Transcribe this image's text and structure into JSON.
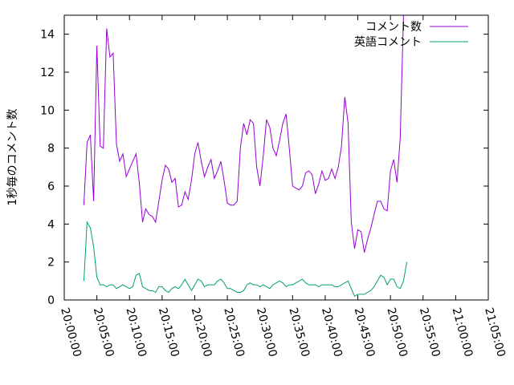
{
  "chart_data": {
    "type": "line",
    "title": "",
    "xlabel": "",
    "ylabel": "1秒毎のコメント数",
    "xlim": [
      "20:00:00",
      "21:05:00"
    ],
    "ylim": [
      0,
      15
    ],
    "x_ticks": [
      "20:00:00",
      "20:05:00",
      "20:10:00",
      "20:15:00",
      "20:20:00",
      "20:25:00",
      "20:30:00",
      "20:35:00",
      "20:40:00",
      "20:45:00",
      "20:50:00",
      "20:55:00",
      "21:00:00",
      "21:05:00"
    ],
    "y_ticks": [
      0,
      2,
      4,
      6,
      8,
      10,
      12,
      14
    ],
    "grid": false,
    "legend_position": "top-right",
    "series": [
      {
        "name": "コメント数",
        "color": "#9400d3",
        "points": [
          [
            "20:03:00",
            5.0
          ],
          [
            "20:03:30",
            8.3
          ],
          [
            "20:04:00",
            8.7
          ],
          [
            "20:04:30",
            5.2
          ],
          [
            "20:05:00",
            13.4
          ],
          [
            "20:05:30",
            8.1
          ],
          [
            "20:06:00",
            8.0
          ],
          [
            "20:06:30",
            14.3
          ],
          [
            "20:07:00",
            12.8
          ],
          [
            "20:07:30",
            13.0
          ],
          [
            "20:08:00",
            8.2
          ],
          [
            "20:08:30",
            7.3
          ],
          [
            "20:09:00",
            7.7
          ],
          [
            "20:09:30",
            6.5
          ],
          [
            "20:10:00",
            6.9
          ],
          [
            "20:10:30",
            7.3
          ],
          [
            "20:11:00",
            7.7
          ],
          [
            "20:11:30",
            6.2
          ],
          [
            "20:12:00",
            4.1
          ],
          [
            "20:12:30",
            4.8
          ],
          [
            "20:13:00",
            4.5
          ],
          [
            "20:13:30",
            4.4
          ],
          [
            "20:14:00",
            4.1
          ],
          [
            "20:14:30",
            5.2
          ],
          [
            "20:15:00",
            6.3
          ],
          [
            "20:15:30",
            7.1
          ],
          [
            "20:16:00",
            6.9
          ],
          [
            "20:16:30",
            6.2
          ],
          [
            "20:17:00",
            6.4
          ],
          [
            "20:17:30",
            4.9
          ],
          [
            "20:18:00",
            5.0
          ],
          [
            "20:18:30",
            5.7
          ],
          [
            "20:19:00",
            5.3
          ],
          [
            "20:19:30",
            6.3
          ],
          [
            "20:20:00",
            7.7
          ],
          [
            "20:20:30",
            8.3
          ],
          [
            "20:21:00",
            7.3
          ],
          [
            "20:21:30",
            6.5
          ],
          [
            "20:22:00",
            7.0
          ],
          [
            "20:22:30",
            7.4
          ],
          [
            "20:23:00",
            6.4
          ],
          [
            "20:23:30",
            6.8
          ],
          [
            "20:24:00",
            7.3
          ],
          [
            "20:24:30",
            6.3
          ],
          [
            "20:25:00",
            5.1
          ],
          [
            "20:25:30",
            5.0
          ],
          [
            "20:26:00",
            5.0
          ],
          [
            "20:26:30",
            5.2
          ],
          [
            "20:27:00",
            8.0
          ],
          [
            "20:27:30",
            9.3
          ],
          [
            "20:28:00",
            8.7
          ],
          [
            "20:28:30",
            9.5
          ],
          [
            "20:29:00",
            9.3
          ],
          [
            "20:29:30",
            7.0
          ],
          [
            "20:30:00",
            6.0
          ],
          [
            "20:30:30",
            7.6
          ],
          [
            "20:31:00",
            9.5
          ],
          [
            "20:31:30",
            9.1
          ],
          [
            "20:32:00",
            8.0
          ],
          [
            "20:32:30",
            7.6
          ],
          [
            "20:33:00",
            8.4
          ],
          [
            "20:33:30",
            9.3
          ],
          [
            "20:34:00",
            9.8
          ],
          [
            "20:34:30",
            8.0
          ],
          [
            "20:35:00",
            6.0
          ],
          [
            "20:35:30",
            5.9
          ],
          [
            "20:36:00",
            5.8
          ],
          [
            "20:36:30",
            6.0
          ],
          [
            "20:37:00",
            6.7
          ],
          [
            "20:37:30",
            6.8
          ],
          [
            "20:38:00",
            6.6
          ],
          [
            "20:38:30",
            5.6
          ],
          [
            "20:39:00",
            6.1
          ],
          [
            "20:39:30",
            6.8
          ],
          [
            "20:40:00",
            6.3
          ],
          [
            "20:40:30",
            6.4
          ],
          [
            "20:41:00",
            6.9
          ],
          [
            "20:41:30",
            6.4
          ],
          [
            "20:42:00",
            7.0
          ],
          [
            "20:42:30",
            8.1
          ],
          [
            "20:43:00",
            10.7
          ],
          [
            "20:43:30",
            9.3
          ],
          [
            "20:44:00",
            4.1
          ],
          [
            "20:44:30",
            2.7
          ],
          [
            "20:45:00",
            3.7
          ],
          [
            "20:45:30",
            3.6
          ],
          [
            "20:46:00",
            2.5
          ],
          [
            "20:46:30",
            3.2
          ],
          [
            "20:47:00",
            3.8
          ],
          [
            "20:47:30",
            4.5
          ],
          [
            "20:48:00",
            5.2
          ],
          [
            "20:48:30",
            5.2
          ],
          [
            "20:49:00",
            4.8
          ],
          [
            "20:49:30",
            4.7
          ],
          [
            "20:50:00",
            6.8
          ],
          [
            "20:50:30",
            7.4
          ],
          [
            "20:51:00",
            6.2
          ],
          [
            "20:51:30",
            8.5
          ],
          [
            "20:52:00",
            15.0
          ]
        ]
      },
      {
        "name": "英語コメント",
        "color": "#009e73",
        "points": [
          [
            "20:03:00",
            1.0
          ],
          [
            "20:03:30",
            4.1
          ],
          [
            "20:04:00",
            3.8
          ],
          [
            "20:04:30",
            2.8
          ],
          [
            "20:05:00",
            1.2
          ],
          [
            "20:05:30",
            0.8
          ],
          [
            "20:06:00",
            0.8
          ],
          [
            "20:06:30",
            0.7
          ],
          [
            "20:07:00",
            0.8
          ],
          [
            "20:07:30",
            0.8
          ],
          [
            "20:08:00",
            0.6
          ],
          [
            "20:08:30",
            0.7
          ],
          [
            "20:09:00",
            0.8
          ],
          [
            "20:09:30",
            0.7
          ],
          [
            "20:10:00",
            0.6
          ],
          [
            "20:10:30",
            0.7
          ],
          [
            "20:11:00",
            1.3
          ],
          [
            "20:11:30",
            1.4
          ],
          [
            "20:12:00",
            0.7
          ],
          [
            "20:12:30",
            0.6
          ],
          [
            "20:13:00",
            0.5
          ],
          [
            "20:13:30",
            0.5
          ],
          [
            "20:14:00",
            0.4
          ],
          [
            "20:14:30",
            0.7
          ],
          [
            "20:15:00",
            0.7
          ],
          [
            "20:15:30",
            0.5
          ],
          [
            "20:16:00",
            0.4
          ],
          [
            "20:16:30",
            0.6
          ],
          [
            "20:17:00",
            0.7
          ],
          [
            "20:17:30",
            0.6
          ],
          [
            "20:18:00",
            0.8
          ],
          [
            "20:18:30",
            1.1
          ],
          [
            "20:19:00",
            0.8
          ],
          [
            "20:19:30",
            0.5
          ],
          [
            "20:20:00",
            0.8
          ],
          [
            "20:20:30",
            1.1
          ],
          [
            "20:21:00",
            1.0
          ],
          [
            "20:21:30",
            0.7
          ],
          [
            "20:22:00",
            0.8
          ],
          [
            "20:22:30",
            0.8
          ],
          [
            "20:23:00",
            0.8
          ],
          [
            "20:23:30",
            1.0
          ],
          [
            "20:24:00",
            1.1
          ],
          [
            "20:24:30",
            0.9
          ],
          [
            "20:25:00",
            0.6
          ],
          [
            "20:25:30",
            0.6
          ],
          [
            "20:26:00",
            0.5
          ],
          [
            "20:26:30",
            0.4
          ],
          [
            "20:27:00",
            0.4
          ],
          [
            "20:27:30",
            0.5
          ],
          [
            "20:28:00",
            0.8
          ],
          [
            "20:28:30",
            0.9
          ],
          [
            "20:29:00",
            0.8
          ],
          [
            "20:29:30",
            0.8
          ],
          [
            "20:30:00",
            0.7
          ],
          [
            "20:30:30",
            0.8
          ],
          [
            "20:31:00",
            0.7
          ],
          [
            "20:31:30",
            0.6
          ],
          [
            "20:32:00",
            0.8
          ],
          [
            "20:32:30",
            0.9
          ],
          [
            "20:33:00",
            1.0
          ],
          [
            "20:33:30",
            0.9
          ],
          [
            "20:34:00",
            0.7
          ],
          [
            "20:34:30",
            0.8
          ],
          [
            "20:35:00",
            0.8
          ],
          [
            "20:35:30",
            0.9
          ],
          [
            "20:36:00",
            1.0
          ],
          [
            "20:36:30",
            1.1
          ],
          [
            "20:37:00",
            0.9
          ],
          [
            "20:37:30",
            0.8
          ],
          [
            "20:38:00",
            0.8
          ],
          [
            "20:38:30",
            0.8
          ],
          [
            "20:39:00",
            0.7
          ],
          [
            "20:39:30",
            0.8
          ],
          [
            "20:40:00",
            0.8
          ],
          [
            "20:40:30",
            0.8
          ],
          [
            "20:41:00",
            0.8
          ],
          [
            "20:41:30",
            0.7
          ],
          [
            "20:42:00",
            0.7
          ],
          [
            "20:42:30",
            0.8
          ],
          [
            "20:43:00",
            0.9
          ],
          [
            "20:43:30",
            1.0
          ],
          [
            "20:44:00",
            0.6
          ],
          [
            "20:44:30",
            0.2
          ],
          [
            "20:45:00",
            0.3
          ],
          [
            "20:45:30",
            0.3
          ],
          [
            "20:46:00",
            0.3
          ],
          [
            "20:46:30",
            0.4
          ],
          [
            "20:47:00",
            0.5
          ],
          [
            "20:47:30",
            0.7
          ],
          [
            "20:48:00",
            1.0
          ],
          [
            "20:48:30",
            1.3
          ],
          [
            "20:49:00",
            1.2
          ],
          [
            "20:49:30",
            0.8
          ],
          [
            "20:50:00",
            1.1
          ],
          [
            "20:50:30",
            1.1
          ],
          [
            "20:51:00",
            0.7
          ],
          [
            "20:51:30",
            0.6
          ],
          [
            "20:52:00",
            1.0
          ],
          [
            "20:52:30",
            2.0
          ]
        ]
      }
    ]
  }
}
